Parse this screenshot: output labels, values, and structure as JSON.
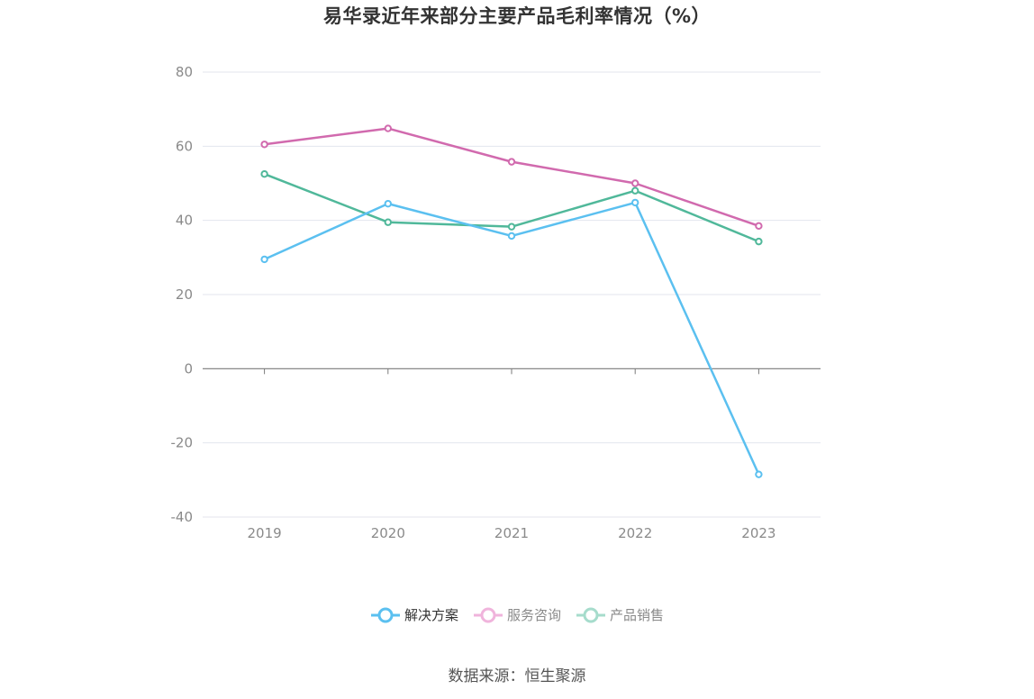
{
  "chart_data": {
    "type": "line",
    "title": "易华录近年来部分主要产品毛利率情况（%）",
    "categories": [
      "2019",
      "2020",
      "2021",
      "2022",
      "2023"
    ],
    "series": [
      {
        "name": "解决方案",
        "color": "#5bc0f0",
        "values": [
          29.5,
          44.5,
          35.8,
          44.8,
          -28.5
        ]
      },
      {
        "name": "服务咨询",
        "color": "#d16aae",
        "values": [
          60.5,
          64.8,
          55.8,
          50.0,
          38.5
        ]
      },
      {
        "name": "产品销售",
        "color": "#50b89a",
        "values": [
          52.5,
          39.5,
          38.3,
          48.0,
          34.3
        ]
      }
    ],
    "y_ticks": [
      "80",
      "60",
      "40",
      "20",
      "0",
      "-20",
      "-40"
    ],
    "ylim": [
      -40,
      80
    ],
    "grid": true,
    "legend_position": "bottom-center"
  },
  "legend": {
    "items": [
      {
        "label": "解决方案",
        "color": "#5bc0f0",
        "active": true
      },
      {
        "label": "服务咨询",
        "color": "#f0b4dc",
        "active": false
      },
      {
        "label": "产品销售",
        "color": "#a6dccc",
        "active": false
      }
    ]
  },
  "source_text": "数据来源：恒生聚源"
}
